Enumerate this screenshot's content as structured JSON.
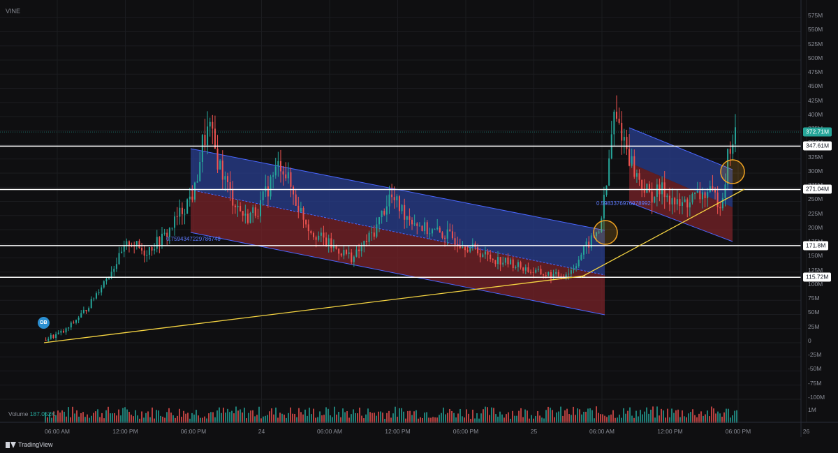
{
  "symbol": "VINE",
  "price_axis": {
    "ticks": [
      "575M",
      "550M",
      "525M",
      "500M",
      "475M",
      "450M",
      "425M",
      "400M",
      "375M",
      "350M",
      "325M",
      "300M",
      "275M",
      "250M",
      "225M",
      "200M",
      "175M",
      "150M",
      "125M",
      "100M",
      "75M",
      "50M",
      "25M",
      "0",
      "-25M",
      "-50M",
      "-75M",
      "-100M"
    ],
    "tags": [
      {
        "value": 372.71,
        "label": "372.71M",
        "bg": "#26a69a",
        "fg": "#ffffff"
      },
      {
        "value": 347.61,
        "label": "347.61M",
        "bg": "#ffffff",
        "fg": "#131722"
      },
      {
        "value": 271.04,
        "label": "271.04M",
        "bg": "#ffffff",
        "fg": "#131722"
      },
      {
        "value": 171.8,
        "label": "171.8M",
        "bg": "#ffffff",
        "fg": "#131722"
      },
      {
        "value": 115.72,
        "label": "115.72M",
        "bg": "#ffffff",
        "fg": "#131722"
      }
    ]
  },
  "volume_axis": {
    "ticks": [
      "1M"
    ]
  },
  "time_axis": {
    "ticks": [
      "06:00 AM",
      "12:00 PM",
      "06:00 PM",
      "24",
      "06:00 AM",
      "12:00 PM",
      "06:00 PM",
      "25",
      "06:00 AM",
      "12:00 PM",
      "06:00 PM",
      "26"
    ]
  },
  "volume": {
    "label": "Volume",
    "value": "187.052K"
  },
  "fib_labels": [
    "0.7594347229786748",
    "0.5983376976978992"
  ],
  "badge": "DB",
  "brand": "TradingView",
  "colors": {
    "background": "#0f0f11",
    "up": "#26a69a",
    "down": "#ef5350",
    "channel_upper": "#2a3f8f",
    "channel_lower": "#7a2328",
    "trendline": "#f5d442",
    "highlight_circle": "#f5a623",
    "level_line": "#ffffff"
  },
  "chart_data": {
    "type": "candlestick",
    "title": "VINE",
    "ylim": [
      -100,
      575
    ],
    "horizontal_levels": [
      347.61,
      271.04,
      171.8,
      115.72
    ],
    "last_price": 372.71,
    "trendlines": 2,
    "channels": 2,
    "highlight_circles": 2,
    "ohlc_path": [
      {
        "t": 0,
        "close": 5
      },
      {
        "t": 3,
        "close": 20
      },
      {
        "t": 6,
        "close": 60
      },
      {
        "t": 9,
        "close": 120
      },
      {
        "t": 12,
        "close": 180
      },
      {
        "t": 14,
        "close": 160
      },
      {
        "t": 17,
        "close": 190
      },
      {
        "t": 19,
        "close": 230
      },
      {
        "t": 21,
        "close": 270
      },
      {
        "t": 22,
        "close": 350
      },
      {
        "t": 23,
        "close": 380
      },
      {
        "t": 24,
        "close": 330
      },
      {
        "t": 26,
        "close": 260
      },
      {
        "t": 28,
        "close": 220
      },
      {
        "t": 30,
        "close": 240
      },
      {
        "t": 32,
        "close": 300
      },
      {
        "t": 33,
        "close": 320
      },
      {
        "t": 35,
        "close": 250
      },
      {
        "t": 37,
        "close": 200
      },
      {
        "t": 40,
        "close": 170
      },
      {
        "t": 43,
        "close": 150
      },
      {
        "t": 46,
        "close": 200
      },
      {
        "t": 48,
        "close": 260
      },
      {
        "t": 50,
        "close": 230
      },
      {
        "t": 53,
        "close": 200
      },
      {
        "t": 56,
        "close": 190
      },
      {
        "t": 59,
        "close": 170
      },
      {
        "t": 62,
        "close": 150
      },
      {
        "t": 65,
        "close": 140
      },
      {
        "t": 68,
        "close": 125
      },
      {
        "t": 71,
        "close": 118
      },
      {
        "t": 73,
        "close": 125
      },
      {
        "t": 75,
        "close": 165
      },
      {
        "t": 77,
        "close": 200
      },
      {
        "t": 78,
        "close": 270
      },
      {
        "t": 79,
        "close": 400
      },
      {
        "t": 80,
        "close": 380
      },
      {
        "t": 82,
        "close": 300
      },
      {
        "t": 84,
        "close": 260
      },
      {
        "t": 86,
        "close": 270
      },
      {
        "t": 88,
        "close": 240
      },
      {
        "t": 90,
        "close": 255
      },
      {
        "t": 92,
        "close": 265
      },
      {
        "t": 94,
        "close": 250
      },
      {
        "t": 95,
        "close": 340
      },
      {
        "t": 96,
        "close": 372.71
      }
    ]
  }
}
